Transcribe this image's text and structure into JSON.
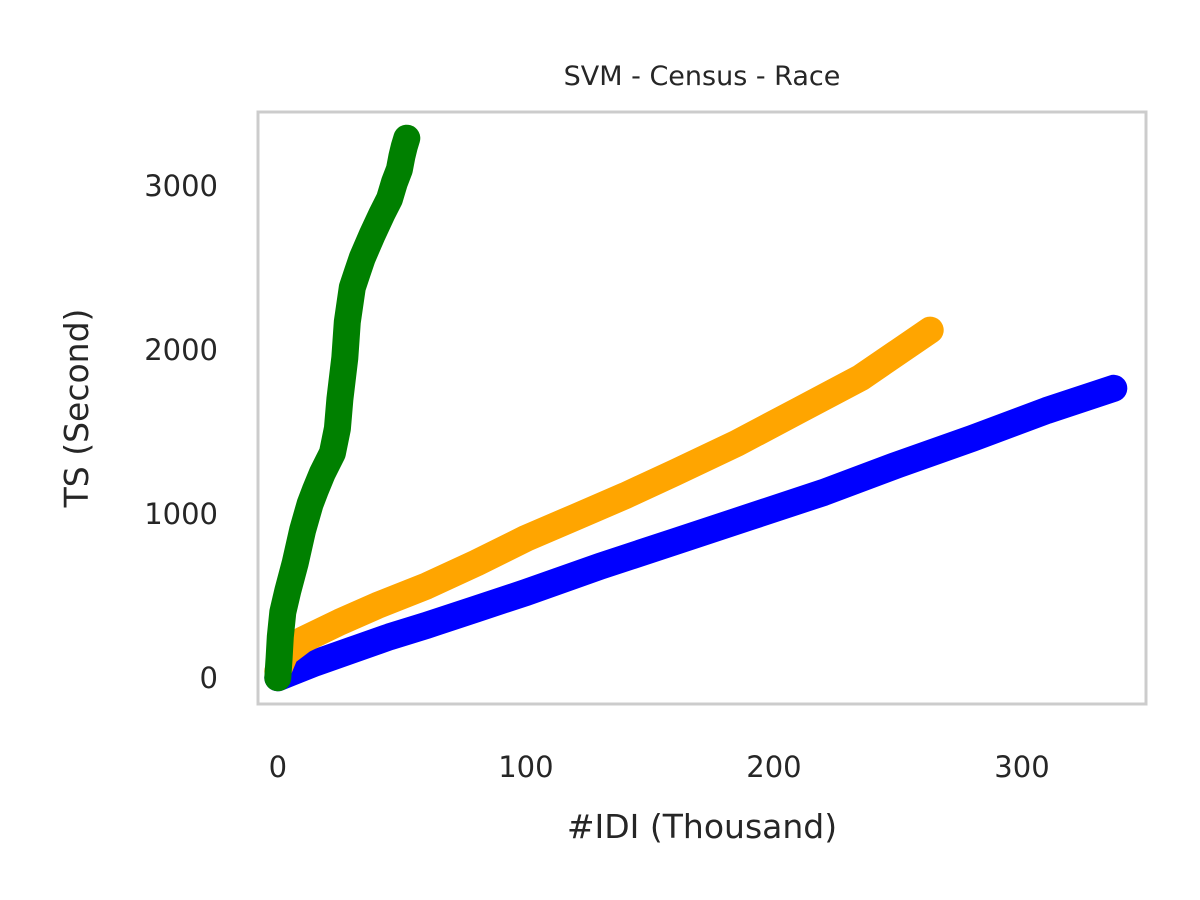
{
  "chart_data": {
    "type": "line",
    "title": "SVM - Census - Race",
    "xlabel": "#IDI (Thousand)",
    "ylabel": "TS (Second)",
    "xlim": [
      -8,
      350
    ],
    "ylim": [
      -160,
      3450
    ],
    "x_ticks": [
      0,
      100,
      200,
      300
    ],
    "y_ticks": [
      0,
      1000,
      2000,
      3000
    ],
    "grid": false,
    "legend": "none",
    "series": [
      {
        "color": "#0000ff",
        "x": [
          0,
          5,
          15,
          30,
          45,
          60,
          80,
          100,
          130,
          160,
          190,
          220,
          250,
          280,
          310,
          337
        ],
        "y": [
          0,
          30,
          90,
          170,
          250,
          320,
          420,
          520,
          680,
          830,
          980,
          1130,
          1300,
          1460,
          1630,
          1765
        ]
      },
      {
        "color": "#ffa500",
        "x": [
          0,
          3,
          10,
          25,
          40,
          60,
          80,
          100,
          120,
          140,
          160,
          185,
          210,
          235,
          263
        ],
        "y": [
          40,
          150,
          230,
          340,
          440,
          560,
          700,
          850,
          980,
          1110,
          1250,
          1430,
          1630,
          1830,
          2120
        ]
      },
      {
        "color": "#008000",
        "x": [
          0,
          0.5,
          1,
          2,
          4,
          7,
          10,
          13,
          15,
          18,
          22,
          24,
          25,
          27,
          28,
          30,
          32,
          34,
          38,
          42,
          45,
          47,
          49,
          50,
          51,
          52
        ],
        "y": [
          0,
          120,
          250,
          400,
          530,
          700,
          900,
          1060,
          1140,
          1250,
          1370,
          1520,
          1700,
          1950,
          2170,
          2380,
          2470,
          2560,
          2700,
          2830,
          2920,
          3020,
          3100,
          3180,
          3240,
          3290
        ]
      }
    ]
  }
}
